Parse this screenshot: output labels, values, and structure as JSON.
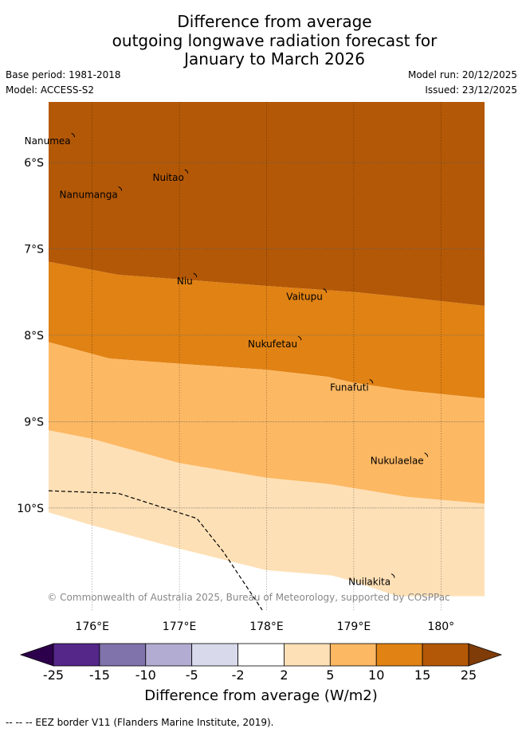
{
  "title": {
    "line1": "Difference from average",
    "line2": "outgoing longwave radiation forecast for",
    "line3": "January to March 2026"
  },
  "meta": {
    "base_period": "Base period: 1981-2018",
    "model": "Model: ACCESS-S2",
    "model_run": "Model run: 20/12/2025",
    "issued": "Issued: 23/12/2025"
  },
  "map": {
    "extent": {
      "lon_min": 175.5,
      "lon_max": 180.5,
      "lat_min": -11.2,
      "lat_max": -5.3
    },
    "lon_ticks": [
      {
        "value": 176,
        "label": "176°E"
      },
      {
        "value": 177,
        "label": "177°E"
      },
      {
        "value": 178,
        "label": "178°E"
      },
      {
        "value": 179,
        "label": "179°E"
      },
      {
        "value": 180,
        "label": "180°"
      }
    ],
    "lat_ticks": [
      {
        "value": -6,
        "label": "6°S"
      },
      {
        "value": -7,
        "label": "7°S"
      },
      {
        "value": -8,
        "label": "8°S"
      },
      {
        "value": -9,
        "label": "9°S"
      },
      {
        "value": -10,
        "label": "10°S"
      }
    ],
    "bands": [
      {
        "name": "15 to 25",
        "color": "#b35806",
        "upper": null,
        "lower": [
          [
            175.5,
            -7.15
          ],
          [
            176.3,
            -7.3
          ],
          [
            177.1,
            -7.36
          ],
          [
            178,
            -7.43
          ],
          [
            179,
            -7.5
          ],
          [
            179.5,
            -7.55
          ],
          [
            180.5,
            -7.66
          ]
        ]
      },
      {
        "name": "10 to 15",
        "color": "#e08214",
        "upper": "previous",
        "lower": [
          [
            175.5,
            -8.08
          ],
          [
            176.2,
            -8.27
          ],
          [
            177,
            -8.33
          ],
          [
            178,
            -8.4
          ],
          [
            178.7,
            -8.48
          ],
          [
            179,
            -8.55
          ],
          [
            179.6,
            -8.64
          ],
          [
            180.5,
            -8.73
          ]
        ]
      },
      {
        "name": "5 to 10",
        "color": "#fdb863",
        "upper": "previous",
        "lower": [
          [
            175.5,
            -9.1
          ],
          [
            176,
            -9.2
          ],
          [
            177,
            -9.48
          ],
          [
            178,
            -9.65
          ],
          [
            178.7,
            -9.72
          ],
          [
            179,
            -9.77
          ],
          [
            179.6,
            -9.87
          ],
          [
            180.5,
            -9.95
          ]
        ]
      },
      {
        "name": "2 to 5",
        "color": "#fee0b6",
        "upper": "previous",
        "lower": [
          [
            175.5,
            -10.05
          ],
          [
            176,
            -10.2
          ],
          [
            177,
            -10.47
          ],
          [
            178,
            -10.72
          ],
          [
            178.75,
            -10.78
          ],
          [
            179,
            -10.85
          ],
          [
            179.5,
            -11.02
          ],
          [
            180.5,
            -11.02
          ]
        ]
      }
    ],
    "eez_line": [
      [
        175.5,
        -9.8
      ],
      [
        176.3,
        -9.83
      ],
      [
        177.2,
        -10.12
      ],
      [
        177.5,
        -10.5
      ],
      [
        177.95,
        -11.18
      ]
    ],
    "places": [
      {
        "name": "Nanumea",
        "lon": 175.78,
        "lat": -5.68
      },
      {
        "name": "Nuitao",
        "lon": 177.08,
        "lat": -6.1
      },
      {
        "name": "Nanumanga",
        "lon": 176.32,
        "lat": -6.3
      },
      {
        "name": "Niu",
        "lon": 177.18,
        "lat": -7.3
      },
      {
        "name": "Vaitupu",
        "lon": 178.67,
        "lat": -7.48
      },
      {
        "name": "Nukufetau",
        "lon": 178.38,
        "lat": -8.03
      },
      {
        "name": "Funafuti",
        "lon": 179.2,
        "lat": -8.53
      },
      {
        "name": "Nukulaelae",
        "lon": 179.83,
        "lat": -9.38
      },
      {
        "name": "Nuilakita",
        "lon": 179.45,
        "lat": -10.78
      }
    ],
    "copyright": "© Commonwealth of Australia 2025, Bureau of Meteorology, supported by COSPPac"
  },
  "colorbar": {
    "title": "Difference from average (W/m2)",
    "ticks": [
      "-25",
      "-15",
      "-10",
      "-5",
      "-2",
      "2",
      "5",
      "10",
      "15",
      "25"
    ],
    "under_color": "#2d004b",
    "over_color": "#7f3b08",
    "colors": [
      "#542788",
      "#8073ac",
      "#b2abd2",
      "#d8daeb",
      "#ffffff",
      "#fee0b6",
      "#fdb863",
      "#e08214",
      "#b35806"
    ]
  },
  "footnote": "-- -- -- EEZ border V11 (Flanders Marine Institute, 2019)."
}
